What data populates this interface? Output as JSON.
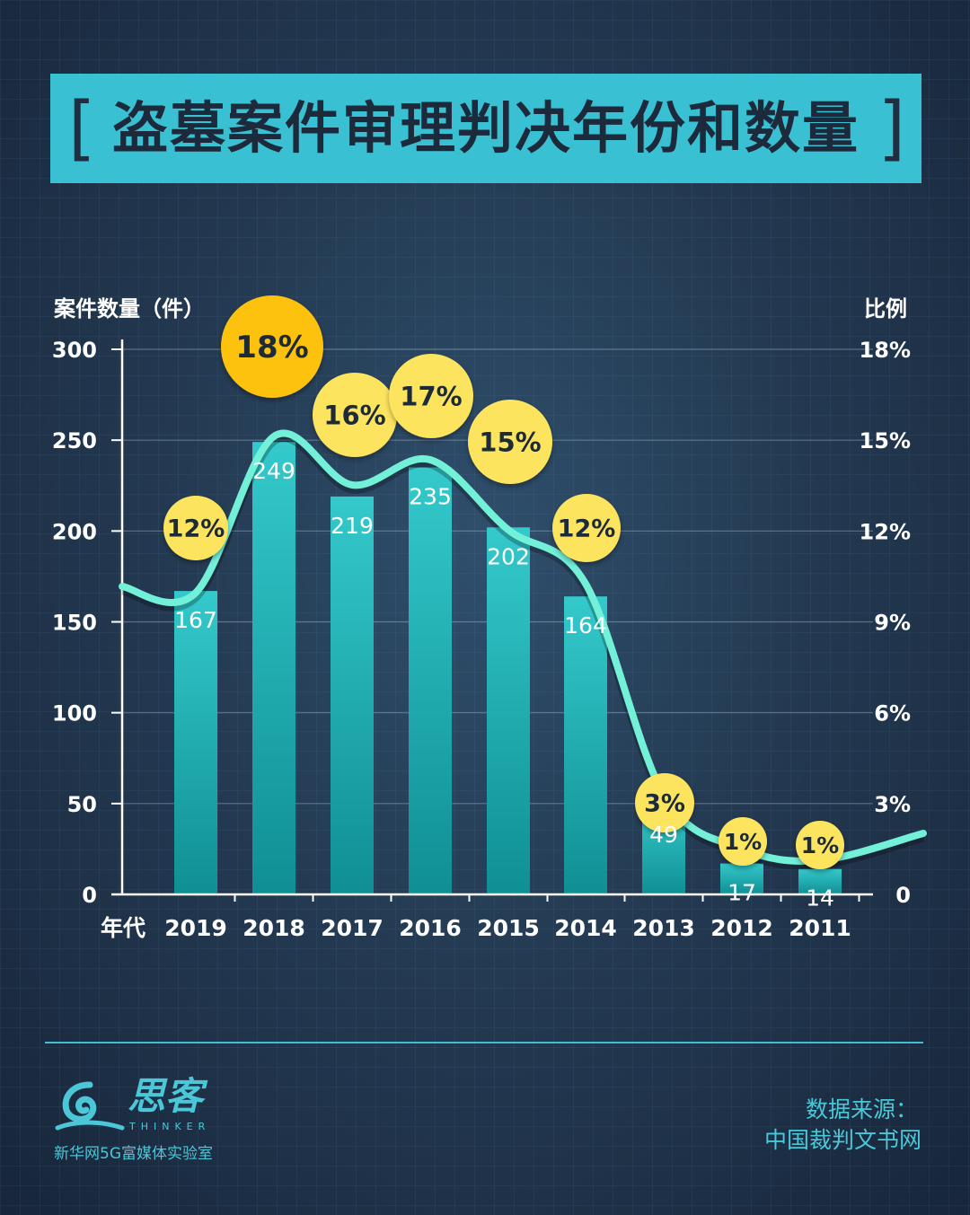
{
  "title": "盗墓案件审理判决年份和数量",
  "title_brackets": [
    "[",
    "]"
  ],
  "chart_data": {
    "type": "bar",
    "title": "盗墓案件审理判决年份和数量",
    "xlabel": "年代",
    "ylabel": "案件数量（件）",
    "y2label": "比例",
    "categories": [
      "2019",
      "2018",
      "2017",
      "2016",
      "2015",
      "2014",
      "2013",
      "2012",
      "2011"
    ],
    "series": [
      {
        "type": "bar",
        "values": [
          167,
          249,
          219,
          235,
          202,
          164,
          49,
          17,
          14
        ]
      },
      {
        "type": "line",
        "axis": "right",
        "values": [
          12,
          18,
          16,
          17,
          15,
          12,
          3,
          1,
          1
        ],
        "labels": [
          "12%",
          "18%",
          "16%",
          "17%",
          "15%",
          "12%",
          "3%",
          "1%",
          "1%"
        ]
      }
    ],
    "ylim": [
      0,
      300
    ],
    "yticks": [
      "0",
      "50",
      "100",
      "150",
      "200",
      "250",
      "300"
    ],
    "y2lim": [
      0,
      18
    ],
    "y2ticks": [
      "0",
      "3%",
      "6%",
      "9%",
      "12%",
      "15%",
      "18%"
    ],
    "grid": true,
    "colors": {
      "bar": "#1fb5b8",
      "line": "#72f0d8",
      "badge": "#fde45e",
      "badge_max": "#fcc20f"
    }
  },
  "footer": {
    "logo_name": "思客",
    "logo_en": "THINKER",
    "logo_org": "新华网5G富媒体实验室",
    "source_label": "数据来源：",
    "source_value": "中国裁判文书网"
  }
}
